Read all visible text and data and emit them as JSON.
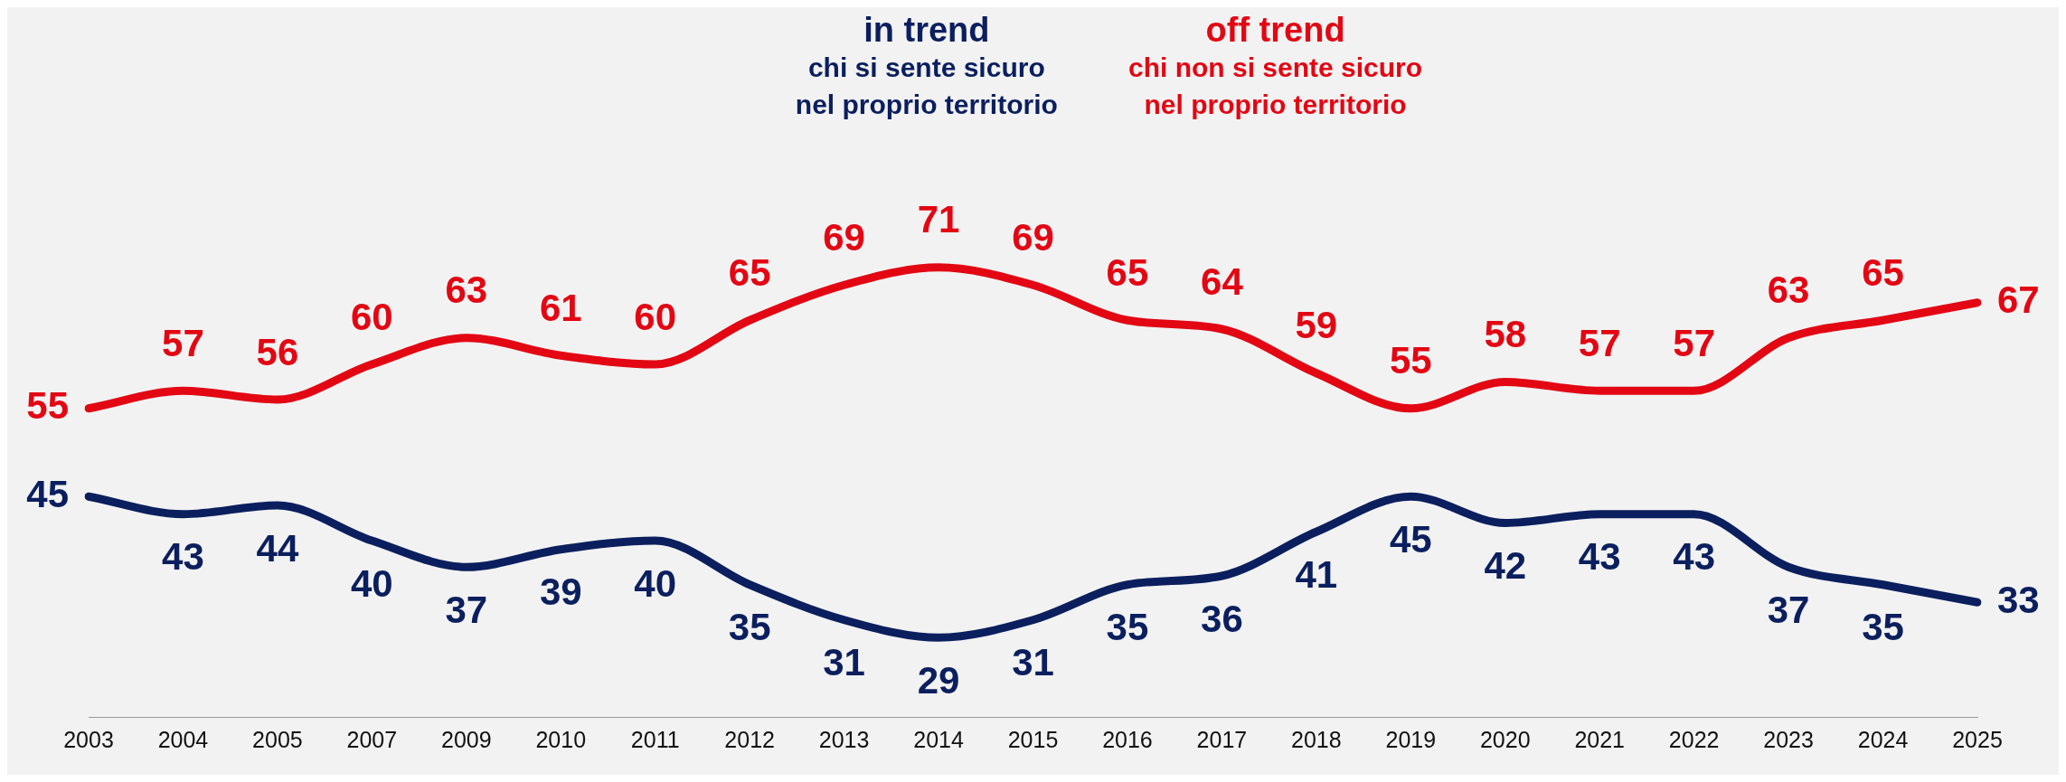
{
  "chart_data": {
    "type": "line",
    "categories": [
      "2003",
      "2004",
      "2005",
      "2007",
      "2009",
      "2010",
      "2011",
      "2012",
      "2013",
      "2014",
      "2015",
      "2016",
      "2017",
      "2018",
      "2019",
      "2020",
      "2021",
      "2022",
      "2023",
      "2024",
      "2025"
    ],
    "series": [
      {
        "name": "in trend",
        "color": "#0b1f5e",
        "values": [
          45,
          43,
          44,
          40,
          37,
          39,
          40,
          35,
          31,
          29,
          31,
          35,
          36,
          41,
          45,
          42,
          43,
          43,
          37,
          35,
          33
        ]
      },
      {
        "name": "off trend",
        "color": "#e30613",
        "values": [
          55,
          57,
          56,
          60,
          63,
          61,
          60,
          65,
          69,
          71,
          69,
          65,
          64,
          59,
          55,
          58,
          57,
          57,
          63,
          65,
          67
        ]
      }
    ],
    "annotations": [
      "chi si sente sicuro\nnel proprio territorio",
      "chi non si sente sicuro\nnel proprio territorio"
    ],
    "data_labels": true,
    "grid": false,
    "legend": false,
    "marker": "none",
    "tick_labels": "x"
  }
}
